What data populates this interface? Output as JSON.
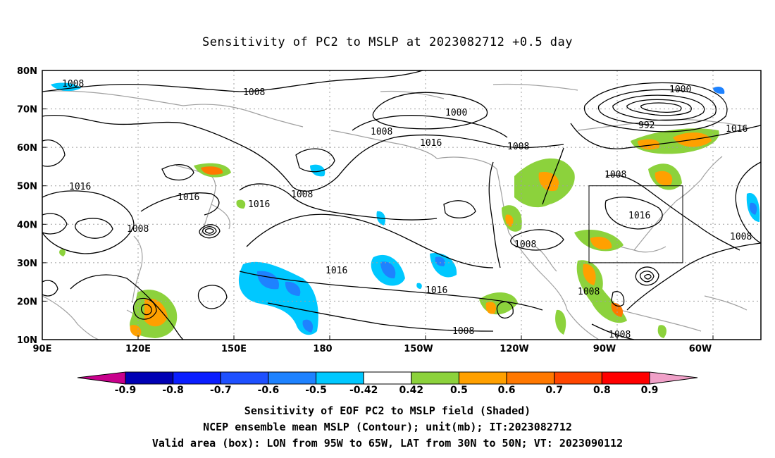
{
  "title": "Sensitivity of PC2 to MSLP at 2023082712 +0.5 day",
  "map": {
    "lon_ticks": [
      "90E",
      "120E",
      "150E",
      "180",
      "150W",
      "120W",
      "90W",
      "60W"
    ],
    "lat_ticks": [
      "80N",
      "70N",
      "60N",
      "50N",
      "40N",
      "30N",
      "20N",
      "10N"
    ],
    "contour_labels": [
      "1008",
      "1008",
      "1000",
      "1008",
      "1016",
      "1008",
      "1000",
      "992",
      "1016",
      "1016",
      "1016",
      "1008",
      "1016",
      "1008",
      "1016",
      "1008",
      "1016",
      "1008",
      "1008",
      "1016",
      "1008",
      "1008",
      "1008"
    ],
    "valid_box": {
      "lon_from": "95W",
      "lon_to": "65W",
      "lat_from": "30N",
      "lat_to": "50N"
    }
  },
  "colorbar": {
    "labels": [
      "-0.9",
      "-0.8",
      "-0.7",
      "-0.6",
      "-0.5",
      "-0.42",
      "0.42",
      "0.5",
      "0.6",
      "0.7",
      "0.8",
      "0.9"
    ],
    "colors": [
      "#0000b4",
      "#0a1eff",
      "#1e50ff",
      "#1e82ff",
      "#00c8ff",
      "#ffffff",
      "#8cd23c",
      "#ffa000",
      "#ff7800",
      "#ff4600",
      "#ff0000"
    ],
    "left_arrow_color": "#c8008c",
    "right_arrow_color": "#f0a0c8"
  },
  "footer": {
    "line1": "Sensitivity of EOF PC2 to MSLP field (Shaded)",
    "line2": "NCEP ensemble mean MSLP (Contour); unit(mb); IT:2023082712",
    "line3": "Valid area (box): LON from 95W to 65W, LAT from 30N to 50N; VT: 2023090112"
  }
}
